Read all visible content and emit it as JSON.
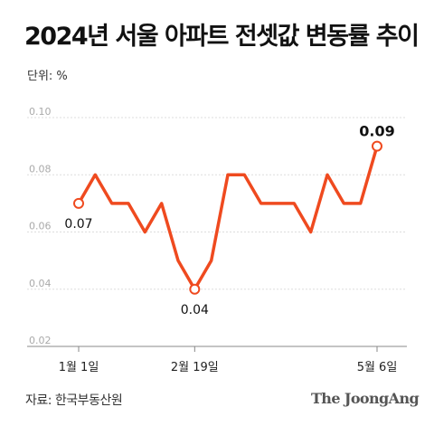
{
  "title": "2024년 서울 아파트 전셋값 변동률 추이",
  "unit_label": "단위: %",
  "source": "자료: 한국부동산원",
  "logo": "The JoongAng",
  "colors": {
    "line": "#ef4a1f",
    "grid": "#dddddd",
    "axis": "#888888"
  },
  "chart_data": {
    "type": "line",
    "x": [
      1,
      2,
      3,
      4,
      5,
      6,
      7,
      8,
      9,
      10,
      11,
      12,
      13,
      14,
      15,
      16,
      17,
      18,
      19
    ],
    "values": [
      0.07,
      0.08,
      0.07,
      0.07,
      0.06,
      0.07,
      0.05,
      0.04,
      0.05,
      0.08,
      0.08,
      0.07,
      0.07,
      0.07,
      0.06,
      0.08,
      0.07,
      0.07,
      0.09
    ],
    "ylim": [
      0.02,
      0.1
    ],
    "yticks": [
      "0.02",
      "0.04",
      "0.06",
      "0.08",
      "0.10"
    ],
    "xticks": [
      {
        "index": 0,
        "label": "1월 1일"
      },
      {
        "index": 7,
        "label": "2월 19일"
      },
      {
        "index": 18,
        "label": "5월 6일"
      }
    ],
    "annotations": [
      {
        "index": 0,
        "label": "0.07",
        "position": "below"
      },
      {
        "index": 7,
        "label": "0.04",
        "position": "below"
      },
      {
        "index": 18,
        "label": "0.09",
        "position": "above"
      }
    ],
    "grid": true
  }
}
